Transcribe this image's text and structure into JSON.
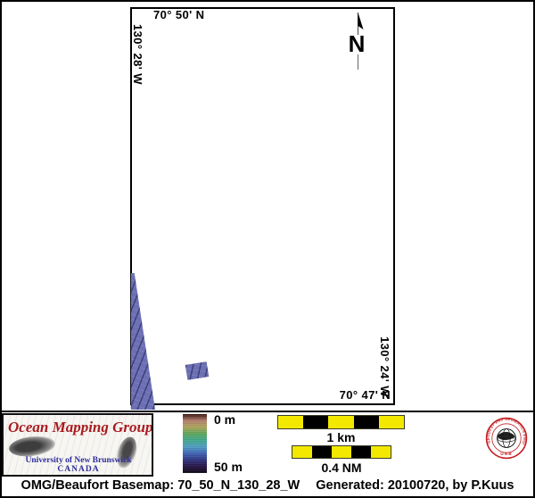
{
  "map": {
    "top_coord": "70° 50' N",
    "left_coord": "130° 28' W",
    "right_coord": "130° 24' W",
    "bottom_coord": "70° 47' N",
    "north_arrow_label": "N"
  },
  "legend": {
    "depth_top": "0 m",
    "depth_bottom": "50 m",
    "colorbar_colors": [
      "#3a120e",
      "#b5806e",
      "#ada65a",
      "#5ea75a",
      "#41a98f",
      "#4f9ec4",
      "#3f63b5",
      "#2f3380",
      "#251343",
      "#0d0715"
    ]
  },
  "scalebars": [
    {
      "label": "1 km",
      "segments": [
        "#f2e800",
        "#000000",
        "#f2e800",
        "#000000",
        "#f2e800"
      ]
    },
    {
      "label": "0.4 NM",
      "segments": [
        "#f2e800",
        "#000000",
        "#f2e800",
        "#000000",
        "#f2e800"
      ]
    }
  ],
  "logo": {
    "title": "Ocean Mapping Group",
    "subtitle1": "University of New Brunswick",
    "subtitle2": "CANADA"
  },
  "seal": {
    "ring_text": "GEODESY AND GEOMATICS ENGINEERING",
    "bottom_text": "UNB"
  },
  "footer": {
    "caption_left": "OMG/Beaufort Basemap: 70_50_N_130_28_W",
    "caption_right": "Generated: 20100720, by P.Kuus"
  },
  "colors": {
    "swath_blue": "#6b6fb3",
    "swath_dark": "#3f4386",
    "scalebar_yellow": "#f2e800",
    "logo_red": "#a81c20",
    "logo_blue": "#2e2e9e",
    "seal_red": "#c41f25",
    "frame_black": "#000000"
  }
}
